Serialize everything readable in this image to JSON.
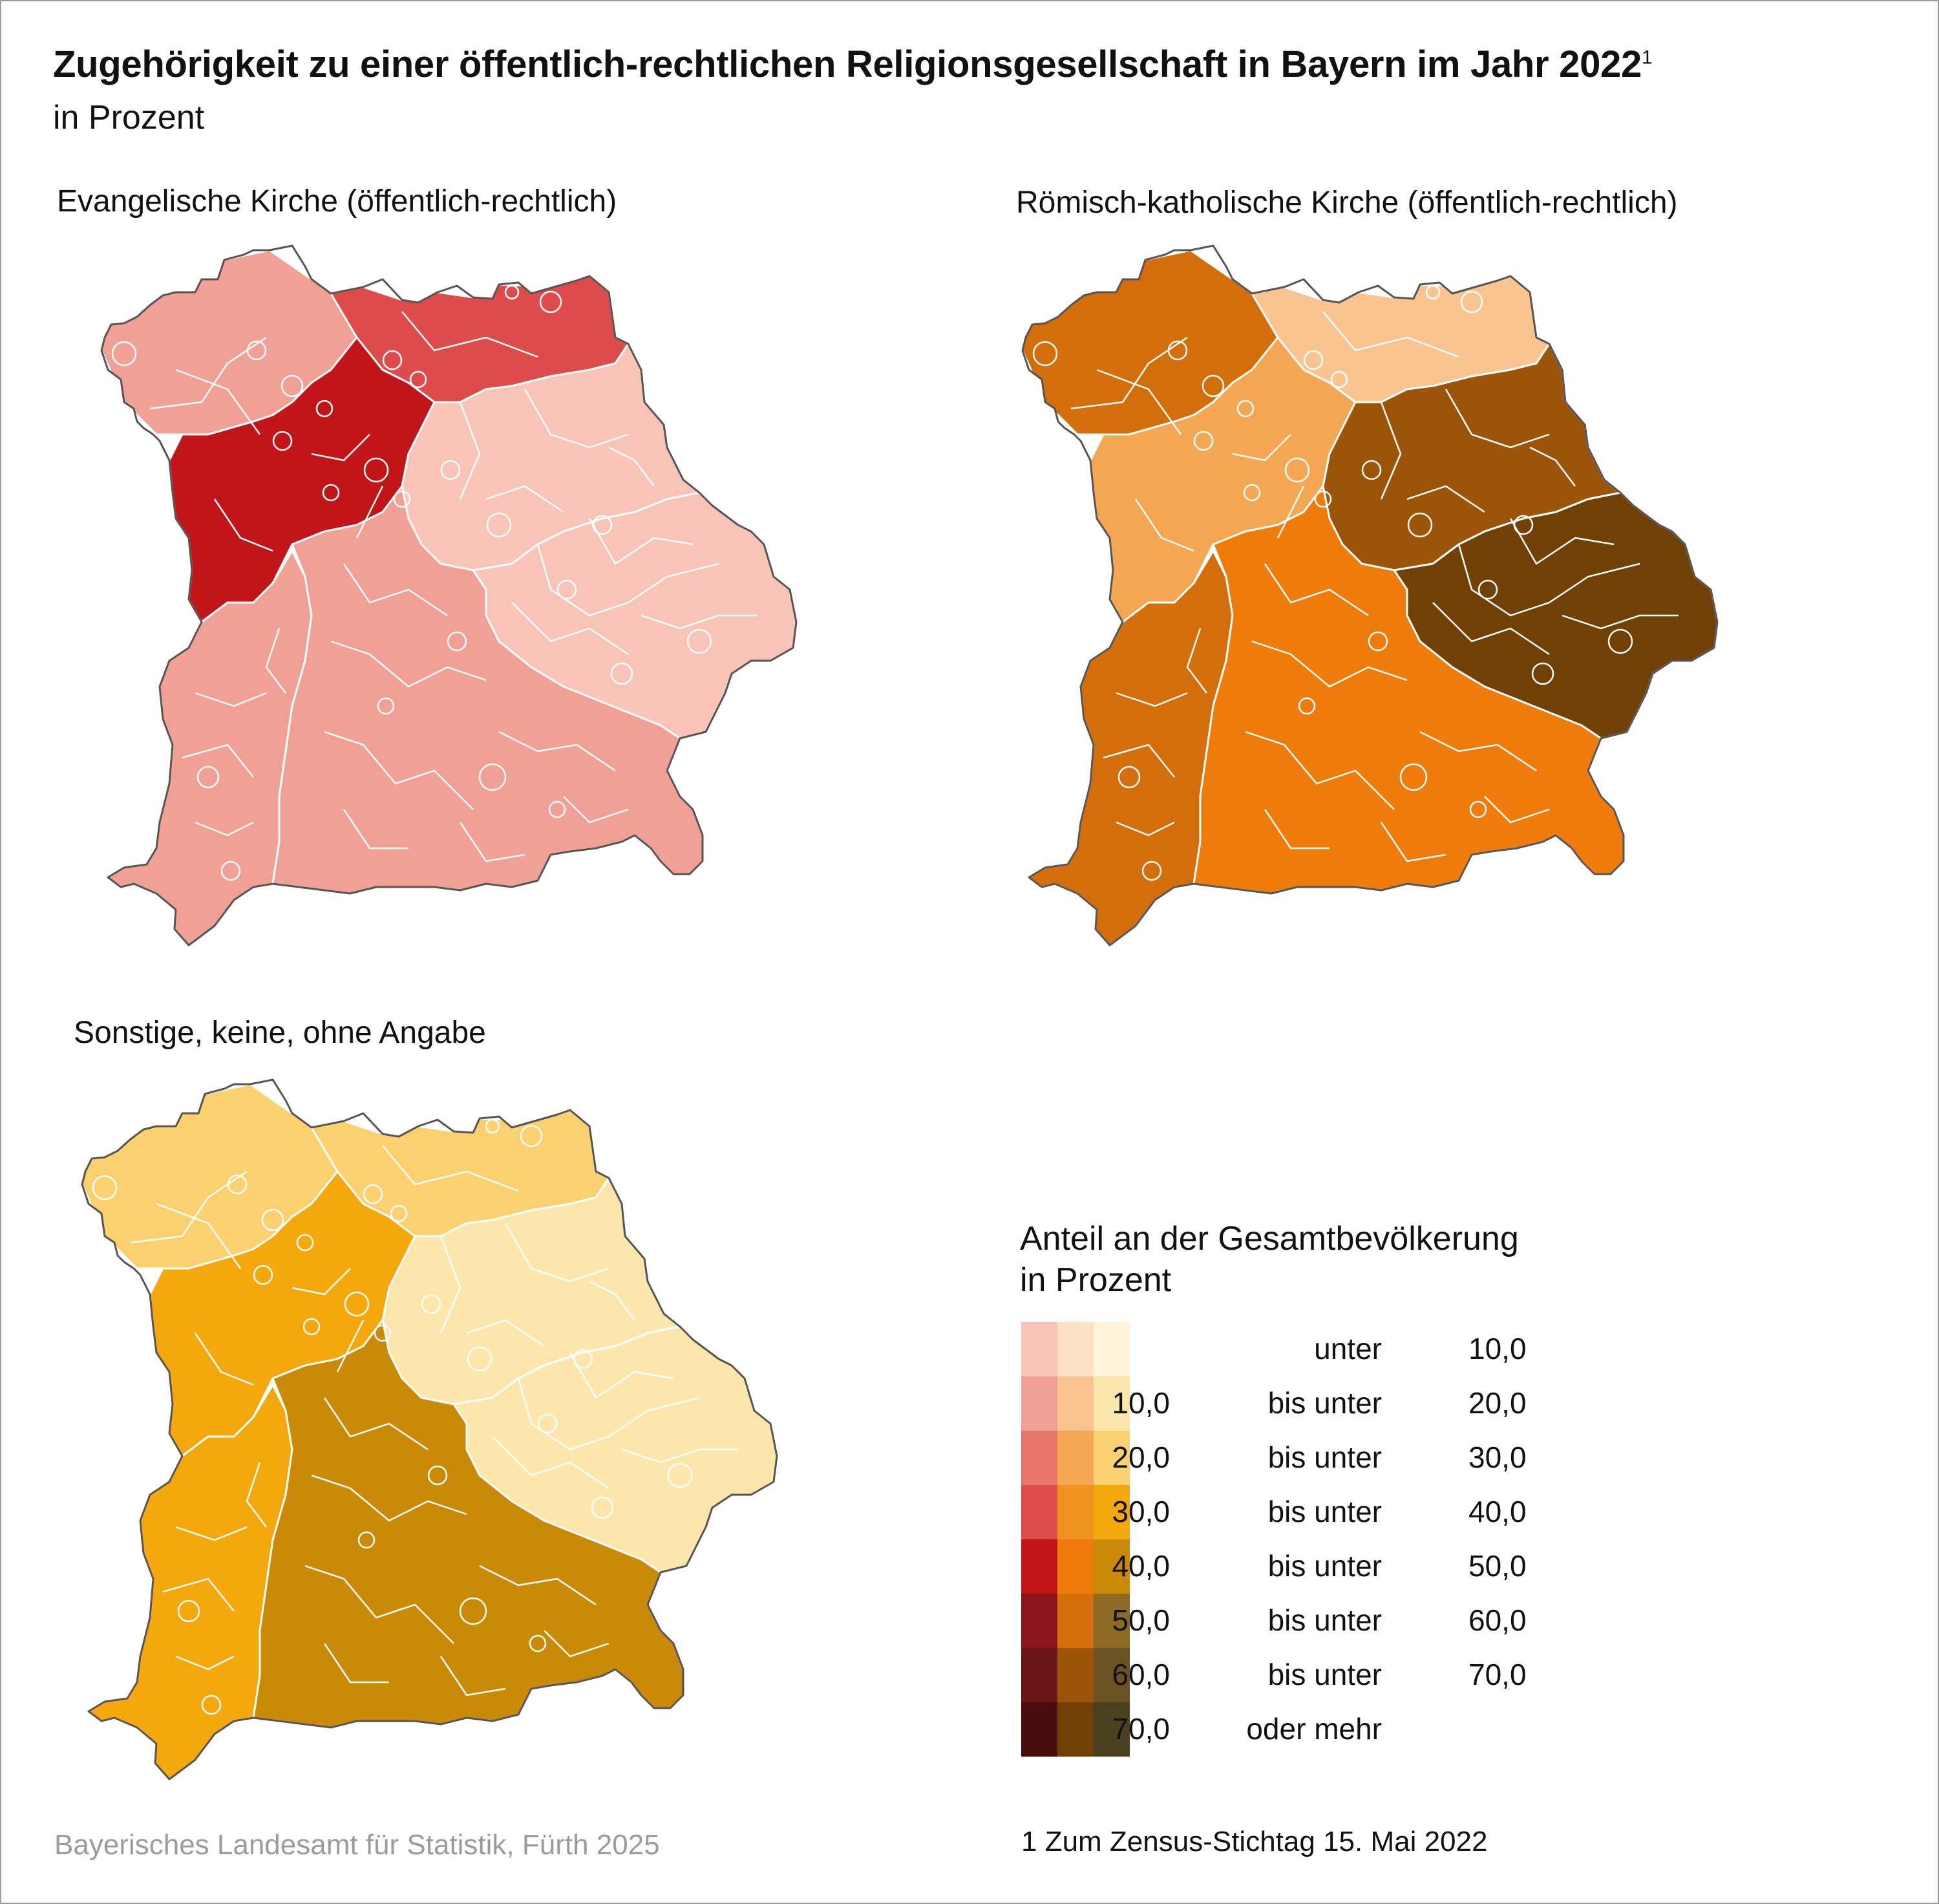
{
  "title": "Zugehörigkeit zu einer öffentlich-rechtlichen Religionsgesellschaft in Bayern im Jahr 2022",
  "title_footnote_ref": "1",
  "subtitle": "in Prozent",
  "maps": {
    "evangelisch": {
      "title": "Evangelische Kirche (öffentlich-rechtlich)",
      "palette": [
        "#f7c4b7",
        "#f0a095",
        "#ea776e",
        "#dd4b4b",
        "#c1151a",
        "#8a151e",
        "#6a1517",
        "#4a0d0e"
      ],
      "regions": [
        {
          "id": "unterfranken",
          "class": 1
        },
        {
          "id": "oberfranken",
          "class": 3
        },
        {
          "id": "mittelfranken",
          "class": 4
        },
        {
          "id": "oberpfalz",
          "class": 0
        },
        {
          "id": "niederbayern",
          "class": 0
        },
        {
          "id": "schwaben",
          "class": 1
        },
        {
          "id": "oberbayern",
          "class": 1
        }
      ]
    },
    "katholisch": {
      "title": "Römisch-katholische Kirche (öffentlich-rechtlich)",
      "palette": [
        "#fde1c7",
        "#f9c48f",
        "#f3a752",
        "#ee9220",
        "#ef7b0b",
        "#d36e0b",
        "#9c5508",
        "#714005"
      ],
      "regions": [
        {
          "id": "unterfranken",
          "class": 5
        },
        {
          "id": "oberfranken",
          "class": 1
        },
        {
          "id": "mittelfranken",
          "class": 2
        },
        {
          "id": "oberpfalz",
          "class": 6
        },
        {
          "id": "niederbayern",
          "class": 7
        },
        {
          "id": "schwaben",
          "class": 5
        },
        {
          "id": "oberbayern",
          "class": 4
        }
      ]
    },
    "sonstige": {
      "title": "Sonstige, keine, ohne Angabe",
      "palette": [
        "#fef2d9",
        "#fde6ab",
        "#fbd06e",
        "#f5a80b",
        "#ca8a06",
        "#8c6a24",
        "#6a5224",
        "#4a4120"
      ],
      "regions": [
        {
          "id": "unterfranken",
          "class": 2
        },
        {
          "id": "oberfranken",
          "class": 2
        },
        {
          "id": "mittelfranken",
          "class": 3
        },
        {
          "id": "oberpfalz",
          "class": 1
        },
        {
          "id": "niederbayern",
          "class": 1
        },
        {
          "id": "schwaben",
          "class": 3
        },
        {
          "id": "oberbayern",
          "class": 4
        }
      ]
    }
  },
  "legend": {
    "title_line1": "Anteil an der Gesamtbevölkerung",
    "title_line2": "in Prozent",
    "rows": [
      {
        "from": "",
        "mid": "unter",
        "to": "10,0"
      },
      {
        "from": "10,0",
        "mid": "bis unter",
        "to": "20,0"
      },
      {
        "from": "20,0",
        "mid": "bis unter",
        "to": "30,0"
      },
      {
        "from": "30,0",
        "mid": "bis unter",
        "to": "40,0"
      },
      {
        "from": "40,0",
        "mid": "bis unter",
        "to": "50,0"
      },
      {
        "from": "50,0",
        "mid": "bis unter",
        "to": "60,0"
      },
      {
        "from": "60,0",
        "mid": "bis unter",
        "to": "70,0"
      },
      {
        "from": "70,0",
        "mid": "oder mehr",
        "to": ""
      }
    ]
  },
  "footnote": "1  Zum Zensus-Stichtag 15. Mai 2022",
  "source": "Bayerisches Landesamt für Statistik, Fürth 2025"
}
